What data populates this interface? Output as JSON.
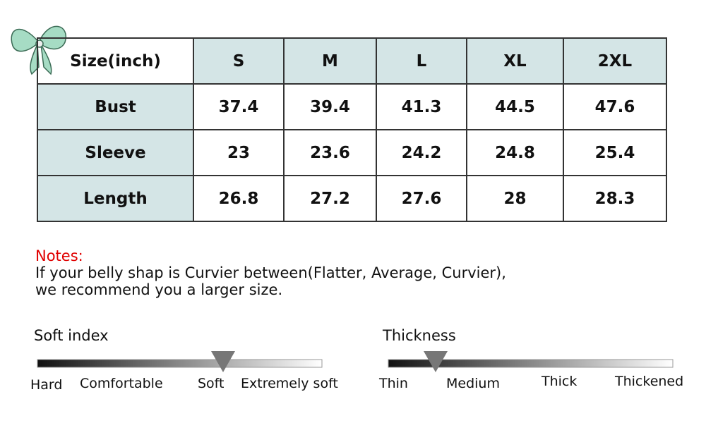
{
  "table": {
    "header": [
      "Size(inch)",
      "S",
      "M",
      "L",
      "XL",
      "2XL"
    ],
    "rows": [
      [
        "Bust",
        "37.4",
        "39.4",
        "41.3",
        "44.5",
        "47.6"
      ],
      [
        "Sleeve",
        "23",
        "23.6",
        "24.2",
        "24.8",
        "25.4"
      ],
      [
        "Length",
        "26.8",
        "27.2",
        "27.6",
        "28",
        "28.3"
      ]
    ]
  },
  "notes": {
    "title": "Notes:",
    "lines": [
      "If your belly shap is Curvier between(Flatter, Average, Curvier),",
      "we recommend you a larger size."
    ]
  },
  "soft_index": {
    "title": "Soft index",
    "labels": [
      "Hard",
      "Comfortable",
      "Soft",
      "Extremely soft"
    ]
  },
  "thickness": {
    "title": "Thickness",
    "labels": [
      "Thin",
      "Medium",
      "Thick",
      "Thickened"
    ]
  }
}
